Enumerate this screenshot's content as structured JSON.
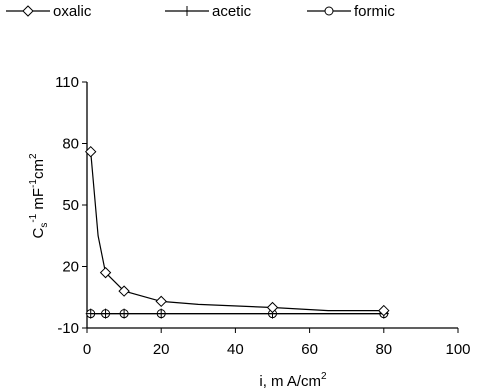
{
  "chart_data": {
    "type": "line",
    "title": "",
    "xlabel": {
      "main": "i, m A/cm",
      "sup": "2"
    },
    "ylabel": {
      "C": "C",
      "s": "s",
      "exp1": "-1",
      "mF": " mF",
      "exp2": "-1",
      "cm": "cm",
      "exp3": "2"
    },
    "xlim": [
      0,
      100
    ],
    "ylim": [
      -10,
      110
    ],
    "xticks": [
      0,
      20,
      40,
      60,
      80,
      100
    ],
    "yticks": [
      -10,
      20,
      50,
      80,
      110
    ],
    "grid": false,
    "legend_position": "top",
    "series": [
      {
        "name": "oxalic",
        "marker": "diamond",
        "x": [
          1,
          3,
          5,
          10,
          20,
          30,
          50,
          65,
          80
        ],
        "y": [
          76,
          35,
          17,
          8,
          3,
          1.5,
          0,
          -1.5,
          -1.5
        ]
      },
      {
        "name": "acetic",
        "marker": "plus",
        "x": [
          1,
          5,
          10,
          20,
          50,
          80
        ],
        "y": [
          -3,
          -3,
          -3,
          -3,
          -3,
          -3
        ]
      },
      {
        "name": "formic",
        "marker": "circle",
        "x": [
          1,
          5,
          10,
          20,
          50,
          80
        ],
        "y": [
          -3,
          -3,
          -3,
          -3,
          -3,
          -3
        ]
      }
    ]
  }
}
